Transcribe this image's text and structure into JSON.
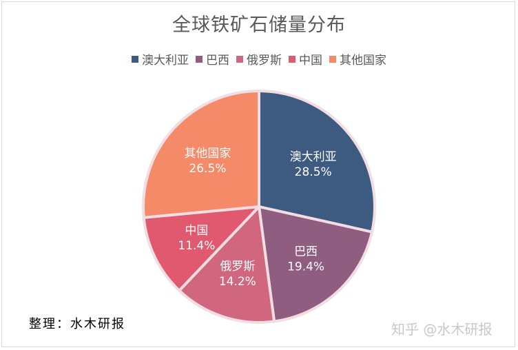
{
  "chart_data": {
    "type": "pie",
    "title": "全球铁矿石储量分布",
    "legend_position": "top",
    "series": [
      {
        "name": "澳大利亚",
        "value": 28.5,
        "label": "28.5%",
        "color": "#3d5a80"
      },
      {
        "name": "巴西",
        "value": 19.4,
        "label": "19.4%",
        "color": "#8f5d80"
      },
      {
        "name": "俄罗斯",
        "value": 14.2,
        "label": "14.2%",
        "color": "#d0677f"
      },
      {
        "name": "中国",
        "value": 11.4,
        "label": "11.4%",
        "color": "#e0596f"
      },
      {
        "name": "其他国家",
        "value": 26.5,
        "label": "26.5%",
        "color": "#f58a68"
      }
    ]
  },
  "credit": "整理：水木研报",
  "watermark": "知乎 @水木研报"
}
